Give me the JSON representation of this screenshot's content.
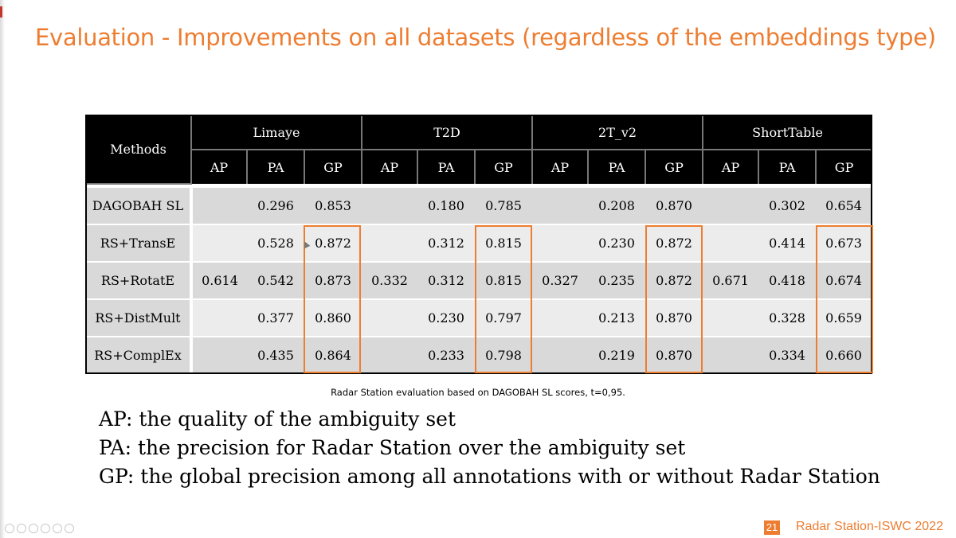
{
  "slide": {
    "title": "Evaluation - Improvements on all datasets (regardless of the embeddings type)",
    "page_number": "21",
    "footer": "Radar Station-ISWC 2022",
    "caption": "Radar Station evaluation based on DAGOBAH SL scores, t=0,95.",
    "definitions": [
      "AP: the quality of the ambiguity set",
      "PA: the precision for Radar Station over the ambiguity set",
      "GP: the global precision among all annotations with or without Radar Station"
    ]
  },
  "table": {
    "method_header": "Methods",
    "datasets": [
      "Limaye",
      "T2D",
      "2T_v2",
      "ShortTable"
    ],
    "metrics": [
      "AP",
      "PA",
      "GP"
    ],
    "rows": [
      {
        "method": "DAGOBAH SL",
        "cells": [
          "",
          "0.296",
          "0.853",
          "",
          "0.180",
          "0.785",
          "",
          "0.208",
          "0.870",
          "",
          "0.302",
          "0.654"
        ]
      },
      {
        "method": "RS+TransE",
        "cells": [
          "",
          "0.528",
          "0.872",
          "",
          "0.312",
          "0.815",
          "",
          "0.230",
          "0.872",
          "",
          "0.414",
          "0.673"
        ]
      },
      {
        "method": "RS+RotatE",
        "cells": [
          "0.614",
          "0.542",
          "0.873",
          "0.332",
          "0.312",
          "0.815",
          "0.327",
          "0.235",
          "0.872",
          "0.671",
          "0.418",
          "0.674"
        ]
      },
      {
        "method": "RS+DistMult",
        "cells": [
          "",
          "0.377",
          "0.860",
          "",
          "0.230",
          "0.797",
          "",
          "0.213",
          "0.870",
          "",
          "0.328",
          "0.659"
        ]
      },
      {
        "method": "RS+ComplEx",
        "cells": [
          "",
          "0.435",
          "0.864",
          "",
          "0.233",
          "0.798",
          "",
          "0.219",
          "0.870",
          "",
          "0.334",
          "0.660"
        ]
      }
    ],
    "highlight_color": "#ed7d31"
  }
}
